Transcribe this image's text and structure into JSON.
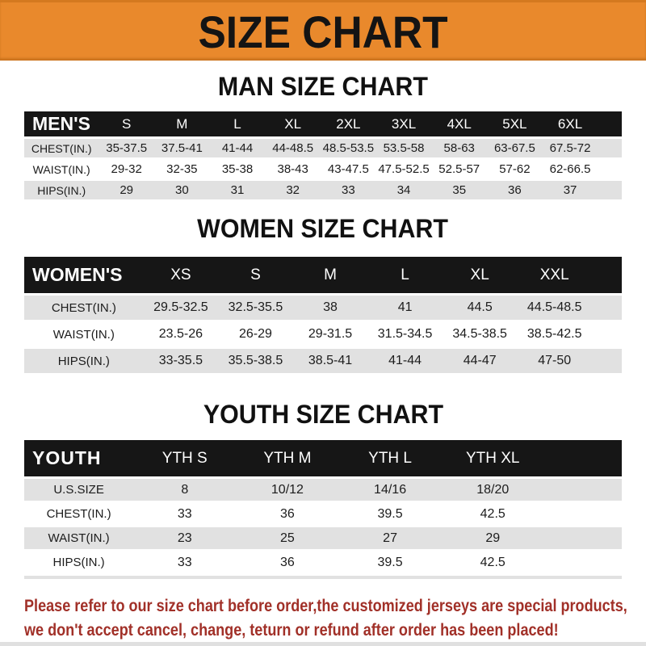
{
  "banner": {
    "title": "SIZE CHART"
  },
  "men": {
    "heading": "MAN SIZE CHART",
    "corner": "MEN'S",
    "sizes": [
      "S",
      "M",
      "L",
      "XL",
      "2XL",
      "3XL",
      "4XL",
      "5XL",
      "6XL"
    ],
    "rows": [
      {
        "label": "CHEST(IN.)",
        "values": [
          "35-37.5",
          "37.5-41",
          "41-44",
          "44-48.5",
          "48.5-53.5",
          "53.5-58",
          "58-63",
          "63-67.5",
          "67.5-72"
        ]
      },
      {
        "label": "WAIST(IN.)",
        "values": [
          "29-32",
          "32-35",
          "35-38",
          "38-43",
          "43-47.5",
          "47.5-52.5",
          "52.5-57",
          "57-62",
          "62-66.5"
        ]
      },
      {
        "label": "HIPS(IN.)",
        "values": [
          "29",
          "30",
          "31",
          "32",
          "33",
          "34",
          "35",
          "36",
          "37"
        ]
      }
    ]
  },
  "women": {
    "heading": "WOMEN SIZE CHART",
    "corner": "WOMEN'S",
    "sizes": [
      "XS",
      "S",
      "M",
      "L",
      "XL",
      "XXL"
    ],
    "rows": [
      {
        "label": "CHEST(IN.)",
        "values": [
          "29.5-32.5",
          "32.5-35.5",
          "38",
          "41",
          "44.5",
          "44.5-48.5"
        ]
      },
      {
        "label": "WAIST(IN.)",
        "values": [
          "23.5-26",
          "26-29",
          "29-31.5",
          "31.5-34.5",
          "34.5-38.5",
          "38.5-42.5"
        ]
      },
      {
        "label": "HIPS(IN.)",
        "values": [
          "33-35.5",
          "35.5-38.5",
          "38.5-41",
          "41-44",
          "44-47",
          "47-50"
        ]
      }
    ]
  },
  "youth": {
    "heading": "YOUTH SIZE CHART",
    "corner": "YOUTH",
    "sizes": [
      "YTH S",
      "YTH M",
      "YTH L",
      "YTH XL"
    ],
    "rows": [
      {
        "label": "U.S.SIZE",
        "values": [
          "8",
          "10/12",
          "14/16",
          "18/20"
        ]
      },
      {
        "label": "CHEST(IN.)",
        "values": [
          "33",
          "36",
          "39.5",
          "42.5"
        ]
      },
      {
        "label": "WAIST(IN.)",
        "values": [
          "23",
          "25",
          "27",
          "29"
        ]
      },
      {
        "label": "HIPS(IN.)",
        "values": [
          "33",
          "36",
          "39.5",
          "42.5"
        ]
      }
    ]
  },
  "footer": {
    "line1": "Please refer to our size chart before order,the customized jerseys are special products,",
    "line2": "we don't accept cancel, change, teturn or refund after order has been placed!"
  },
  "colors": {
    "accent_orange": "#E9892C",
    "band_black": "#161616",
    "row_gray": "#E1E1E1",
    "note_red": "#A13028"
  }
}
